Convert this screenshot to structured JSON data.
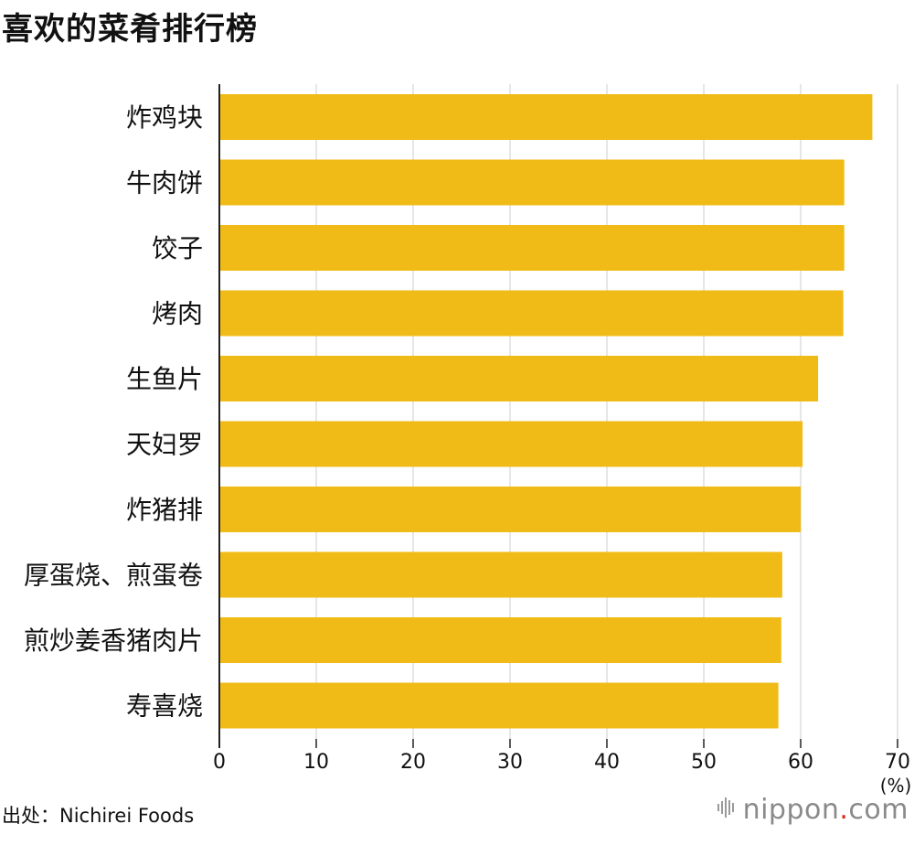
{
  "title": "喜欢的菜肴排行榜",
  "source": "出处：Nichirei Foods",
  "brand": {
    "name": "nippon",
    "dot": ".",
    "tld": "com",
    "icon": "sound-bars-icon"
  },
  "colors": {
    "bar": "#f0bb16",
    "grid": "#cccccc",
    "axis": "#222222"
  },
  "chart_data": {
    "type": "bar",
    "orientation": "horizontal",
    "title": "喜欢的菜肴排行榜",
    "categories": [
      "炸鸡块",
      "牛肉饼",
      "饺子",
      "烤肉",
      "生鱼片",
      "天妇罗",
      "炸猪排",
      "厚蛋烧、煎蛋卷",
      "煎炒姜香猪肉片",
      "寿喜烧"
    ],
    "values": [
      67.4,
      64.5,
      64.5,
      64.4,
      61.8,
      60.2,
      60.0,
      58.1,
      58.0,
      57.7
    ],
    "xlim": [
      0,
      70
    ],
    "xticks": [
      "0",
      "10",
      "20",
      "30",
      "40",
      "50",
      "60",
      "70"
    ],
    "xunit": "(%)",
    "grid": true
  }
}
